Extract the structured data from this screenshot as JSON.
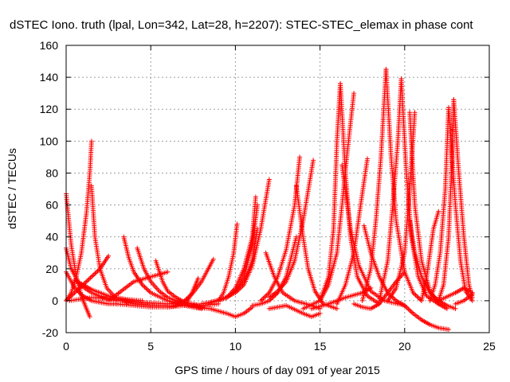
{
  "chart_data": {
    "type": "scatter",
    "title": "dSTEC Iono. truth (lpal, Lon=342, Lat=28, h=2207): STEC-STEC_elemax in phase cont",
    "xlabel": "GPS time / hours of day 091 of year 2015",
    "ylabel": "dSTEC  / TECUs",
    "xlim": [
      0,
      25
    ],
    "ylim": [
      -20,
      160
    ],
    "xticks": [
      0,
      5,
      10,
      15,
      20,
      25
    ],
    "yticks": [
      -20,
      0,
      20,
      40,
      60,
      80,
      100,
      120,
      140,
      160
    ],
    "grid": true,
    "marker": "plus",
    "color": "#ff0000",
    "series": [
      {
        "x": [
          0.0,
          0.3,
          0.6,
          0.9,
          1.2,
          1.4
        ],
        "y": [
          67,
          35,
          15,
          3,
          -5,
          -10
        ]
      },
      {
        "x": [
          0.0,
          0.3,
          0.8,
          1.5,
          2.2,
          3.0
        ],
        "y": [
          33,
          20,
          10,
          5,
          2,
          0
        ]
      },
      {
        "x": [
          0.0,
          0.5,
          1.0,
          1.5,
          2.0,
          2.5,
          3.0
        ],
        "y": [
          18,
          8,
          3,
          0,
          -1,
          -2,
          -2
        ]
      },
      {
        "x": [
          0.0,
          0.3,
          0.6,
          0.9,
          1.2,
          1.4,
          1.5
        ],
        "y": [
          0,
          5,
          15,
          30,
          55,
          80,
          100
        ]
      },
      {
        "x": [
          1.5,
          1.7,
          2.0,
          2.4,
          3.0,
          4.0,
          5.0,
          6.0
        ],
        "y": [
          72,
          40,
          20,
          8,
          1,
          -2,
          -3,
          -3
        ]
      },
      {
        "x": [
          0.0,
          0.5,
          1.0,
          1.5,
          2.0,
          2.5
        ],
        "y": [
          0,
          5,
          10,
          15,
          20,
          28
        ]
      },
      {
        "x": [
          0.5,
          1.0,
          1.5,
          2.0,
          2.5,
          3.5,
          4.5
        ],
        "y": [
          13,
          10,
          7,
          5,
          3,
          1,
          0
        ]
      },
      {
        "x": [
          0.2,
          1.5,
          3.0,
          4.5,
          6.0,
          7.0
        ],
        "y": [
          0,
          2,
          1,
          -1,
          -2,
          -1
        ]
      },
      {
        "x": [
          3.4,
          3.7,
          4.0,
          4.5,
          5.0,
          6.0,
          7.0,
          8.0
        ],
        "y": [
          40,
          27,
          18,
          10,
          5,
          0,
          -3,
          -5
        ]
      },
      {
        "x": [
          2.5,
          3.0,
          3.5,
          4.0,
          5.0,
          6.0
        ],
        "y": [
          0,
          4,
          8,
          12,
          15,
          18
        ]
      },
      {
        "x": [
          4.2,
          4.6,
          5.0,
          5.5,
          6.0,
          7.0,
          8.0
        ],
        "y": [
          33,
          20,
          12,
          6,
          2,
          -2,
          -4
        ]
      },
      {
        "x": [
          5.3,
          5.7,
          6.0,
          6.5,
          7.0,
          8.0
        ],
        "y": [
          25,
          12,
          6,
          2,
          -1,
          -3
        ]
      },
      {
        "x": [
          3.0,
          4.0,
          5.0,
          6.0,
          7.0,
          8.0,
          9.0
        ],
        "y": [
          -2,
          -3,
          -4,
          -4,
          -3,
          -3,
          -2
        ]
      },
      {
        "x": [
          6.0,
          6.5,
          7.0,
          7.5,
          8.0,
          8.7
        ],
        "y": [
          -4,
          -3,
          0,
          5,
          12,
          26
        ]
      },
      {
        "x": [
          7.0,
          7.4,
          7.8
        ],
        "y": [
          -3,
          4,
          14
        ]
      },
      {
        "x": [
          9.0,
          9.3,
          9.6,
          9.9,
          10.1
        ],
        "y": [
          0,
          5,
          15,
          30,
          48
        ]
      },
      {
        "x": [
          7.5,
          8.5,
          9.5,
          10.0,
          10.5,
          11.0
        ],
        "y": [
          -4,
          -5,
          -8,
          -10,
          -8,
          -4
        ]
      },
      {
        "x": [
          8.0,
          9.0,
          9.5,
          10.0,
          10.5,
          11.0,
          11.2
        ],
        "y": [
          -2,
          0,
          2,
          8,
          20,
          40,
          65
        ]
      },
      {
        "x": [
          8.5,
          9.5,
          10.0,
          10.5,
          11.0,
          11.3
        ],
        "y": [
          -1,
          2,
          6,
          15,
          35,
          60
        ]
      },
      {
        "x": [
          9.0,
          10.0,
          10.5,
          11.0,
          11.5,
          12.0
        ],
        "y": [
          0,
          5,
          10,
          22,
          45,
          76
        ]
      },
      {
        "x": [
          9.5,
          10.0,
          10.5,
          11.0,
          11.3
        ],
        "y": [
          2,
          6,
          12,
          25,
          45
        ]
      },
      {
        "x": [
          11.0,
          11.5,
          12.0,
          12.5,
          13.0,
          13.6
        ],
        "y": [
          -3,
          -2,
          0,
          5,
          15,
          40
        ]
      },
      {
        "x": [
          11.5,
          12.0,
          12.5,
          13.0,
          13.5,
          13.8
        ],
        "y": [
          0,
          5,
          15,
          32,
          60,
          90
        ]
      },
      {
        "x": [
          12.0,
          12.5,
          13.0,
          13.5,
          14.0,
          14.6
        ],
        "y": [
          2,
          6,
          12,
          25,
          50,
          88
        ]
      },
      {
        "x": [
          11.8,
          12.3,
          12.8,
          13.5,
          14.5,
          15.0
        ],
        "y": [
          30,
          15,
          5,
          0,
          -3,
          -5
        ]
      },
      {
        "x": [
          13.6,
          14.0,
          14.3,
          14.7,
          15.2,
          16.0
        ],
        "y": [
          72,
          40,
          20,
          6,
          -2,
          -5
        ]
      },
      {
        "x": [
          12.0,
          13.0,
          14.0,
          14.5,
          15.0
        ],
        "y": [
          -5,
          -3,
          -8,
          -10,
          -8
        ]
      },
      {
        "x": [
          14.0,
          15.0,
          15.5,
          15.8,
          16.0,
          16.2
        ],
        "y": [
          -5,
          0,
          15,
          45,
          100,
          136
        ]
      },
      {
        "x": [
          15.0,
          15.5,
          16.0,
          16.3,
          16.6,
          17.0
        ],
        "y": [
          0,
          10,
          30,
          60,
          92,
          130
        ]
      },
      {
        "x": [
          16.2,
          16.5,
          16.8,
          17.2,
          17.8,
          18.5
        ],
        "y": [
          136,
          80,
          40,
          15,
          3,
          -2
        ]
      },
      {
        "x": [
          16.0,
          16.5,
          17.0,
          17.4,
          17.8
        ],
        "y": [
          -2,
          10,
          30,
          60,
          89
        ]
      },
      {
        "x": [
          16.3,
          16.8,
          17.3,
          18.0,
          18.8,
          20.0
        ],
        "y": [
          85,
          45,
          22,
          6,
          0,
          -3
        ]
      },
      {
        "x": [
          14.5,
          15.5,
          16.5,
          17.5,
          18.0
        ],
        "y": [
          -5,
          -2,
          2,
          5,
          8
        ]
      },
      {
        "x": [
          17.6,
          18.0,
          18.5,
          19.0,
          19.5,
          20.0
        ],
        "y": [
          47,
          30,
          15,
          5,
          0,
          -3
        ]
      },
      {
        "x": [
          17.0,
          17.5,
          18.0,
          18.5,
          19.0,
          19.5,
          20.0
        ],
        "y": [
          -2,
          -4,
          -5,
          -2,
          5,
          12,
          18
        ]
      },
      {
        "x": [
          17.5,
          18.0,
          18.3,
          18.6,
          18.9
        ],
        "y": [
          0,
          20,
          50,
          90,
          145
        ]
      },
      {
        "x": [
          18.9,
          19.2,
          19.5,
          20.0,
          20.5,
          21.0
        ],
        "y": [
          145,
          90,
          50,
          18,
          5,
          0
        ]
      },
      {
        "x": [
          18.5,
          19.0,
          19.3,
          19.6,
          19.8
        ],
        "y": [
          0,
          25,
          60,
          100,
          139
        ]
      },
      {
        "x": [
          19.8,
          20.1,
          20.4,
          20.8,
          21.3,
          22.0
        ],
        "y": [
          139,
          80,
          40,
          15,
          3,
          -2
        ]
      },
      {
        "x": [
          19.0,
          19.5,
          20.0,
          20.3,
          20.6
        ],
        "y": [
          0,
          8,
          30,
          70,
          118
        ]
      },
      {
        "x": [
          20.3,
          20.6,
          21.0,
          21.5,
          22.0,
          22.5
        ],
        "y": [
          118,
          60,
          25,
          6,
          -2,
          -5
        ]
      },
      {
        "x": [
          20.3,
          20.6,
          21.0,
          21.5,
          22.0,
          22.5,
          23.0
        ],
        "y": [
          50,
          30,
          15,
          5,
          0,
          -3,
          -5
        ]
      },
      {
        "x": [
          20.0,
          20.5,
          21.0,
          21.5,
          22.0,
          22.6
        ],
        "y": [
          -3,
          -8,
          -12,
          -15,
          -17,
          -18
        ]
      },
      {
        "x": [
          21.0,
          21.3,
          21.5,
          21.7,
          22.0
        ],
        "y": [
          0,
          15,
          30,
          45,
          56
        ]
      },
      {
        "x": [
          21.5,
          21.8,
          22.1,
          22.4,
          22.6
        ],
        "y": [
          0,
          10,
          30,
          70,
          121
        ]
      },
      {
        "x": [
          22.6,
          23.0,
          23.3,
          23.6,
          24.0
        ],
        "y": [
          121,
          60,
          25,
          6,
          0
        ]
      },
      {
        "x": [
          22.0,
          22.3,
          22.6,
          22.8,
          22.9
        ],
        "y": [
          0,
          10,
          40,
          90,
          126
        ]
      },
      {
        "x": [
          22.9,
          23.2,
          23.5,
          23.8,
          24.0
        ],
        "y": [
          126,
          80,
          40,
          10,
          2
        ]
      },
      {
        "x": [
          22.0,
          23.0,
          23.5,
          23.8,
          24.0
        ],
        "y": [
          0,
          5,
          8,
          6,
          5
        ]
      },
      {
        "x": [
          23.0,
          23.5,
          24.0
        ],
        "y": [
          -2,
          0,
          4
        ]
      }
    ]
  }
}
